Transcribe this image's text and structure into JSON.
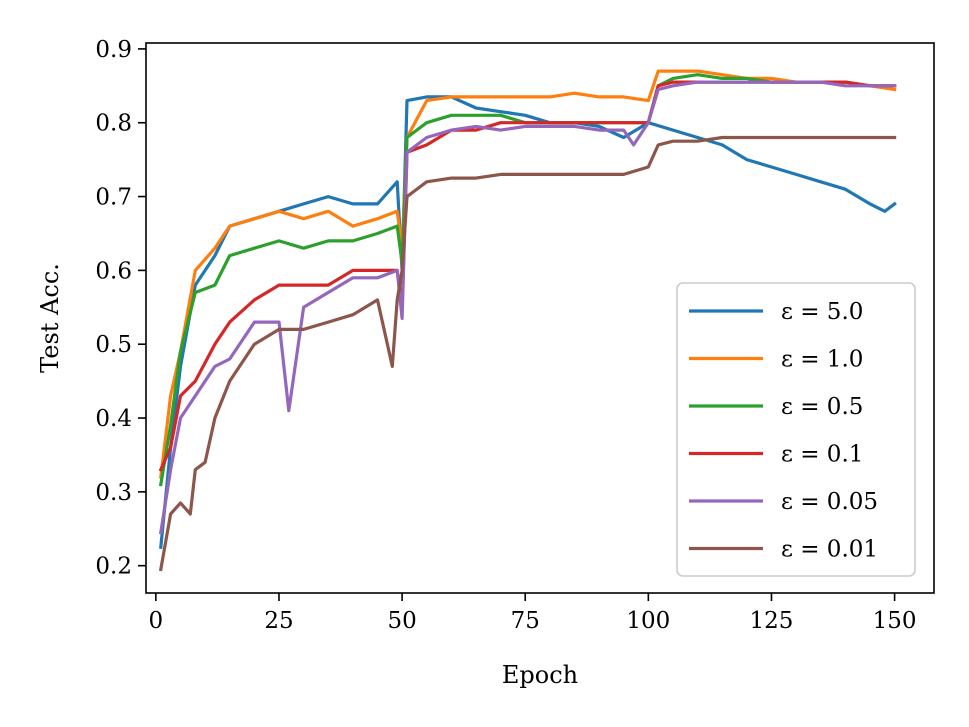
{
  "chart_data": {
    "type": "line",
    "xlabel": "Epoch",
    "ylabel": "Test Acc.",
    "xlim": [
      -2,
      158
    ],
    "ylim": [
      0.163,
      0.908
    ],
    "xticks": [
      0,
      25,
      50,
      75,
      100,
      125,
      150
    ],
    "yticks": [
      0.2,
      0.3,
      0.4,
      0.5,
      0.6,
      0.7,
      0.8,
      0.9
    ],
    "grid": false,
    "legend_position": "lower right",
    "series": [
      {
        "name": "ε = 5.0",
        "color": "#1f77b4",
        "points": [
          [
            1,
            0.225
          ],
          [
            3,
            0.36
          ],
          [
            5,
            0.47
          ],
          [
            8,
            0.58
          ],
          [
            12,
            0.62
          ],
          [
            15,
            0.66
          ],
          [
            20,
            0.67
          ],
          [
            25,
            0.68
          ],
          [
            30,
            0.69
          ],
          [
            35,
            0.7
          ],
          [
            40,
            0.69
          ],
          [
            45,
            0.69
          ],
          [
            49,
            0.72
          ],
          [
            50,
            0.6
          ],
          [
            51,
            0.83
          ],
          [
            55,
            0.835
          ],
          [
            60,
            0.835
          ],
          [
            65,
            0.82
          ],
          [
            70,
            0.815
          ],
          [
            75,
            0.81
          ],
          [
            80,
            0.8
          ],
          [
            85,
            0.8
          ],
          [
            90,
            0.795
          ],
          [
            95,
            0.78
          ],
          [
            100,
            0.8
          ],
          [
            105,
            0.79
          ],
          [
            110,
            0.78
          ],
          [
            115,
            0.77
          ],
          [
            120,
            0.75
          ],
          [
            125,
            0.74
          ],
          [
            130,
            0.73
          ],
          [
            135,
            0.72
          ],
          [
            140,
            0.71
          ],
          [
            145,
            0.69
          ],
          [
            148,
            0.68
          ],
          [
            150,
            0.69
          ]
        ]
      },
      {
        "name": "ε = 1.0",
        "color": "#ff7f0e",
        "points": [
          [
            1,
            0.32
          ],
          [
            3,
            0.43
          ],
          [
            5,
            0.49
          ],
          [
            8,
            0.6
          ],
          [
            12,
            0.63
          ],
          [
            15,
            0.66
          ],
          [
            20,
            0.67
          ],
          [
            25,
            0.68
          ],
          [
            30,
            0.67
          ],
          [
            35,
            0.68
          ],
          [
            40,
            0.66
          ],
          [
            45,
            0.67
          ],
          [
            49,
            0.68
          ],
          [
            50,
            0.63
          ],
          [
            51,
            0.78
          ],
          [
            55,
            0.83
          ],
          [
            60,
            0.835
          ],
          [
            65,
            0.835
          ],
          [
            70,
            0.835
          ],
          [
            75,
            0.835
          ],
          [
            80,
            0.835
          ],
          [
            85,
            0.84
          ],
          [
            90,
            0.835
          ],
          [
            95,
            0.835
          ],
          [
            100,
            0.83
          ],
          [
            102,
            0.87
          ],
          [
            105,
            0.87
          ],
          [
            110,
            0.87
          ],
          [
            115,
            0.865
          ],
          [
            120,
            0.86
          ],
          [
            125,
            0.86
          ],
          [
            130,
            0.855
          ],
          [
            135,
            0.855
          ],
          [
            140,
            0.855
          ],
          [
            145,
            0.85
          ],
          [
            150,
            0.845
          ]
        ]
      },
      {
        "name": "ε = 0.5",
        "color": "#2ca02c",
        "points": [
          [
            1,
            0.31
          ],
          [
            3,
            0.39
          ],
          [
            5,
            0.49
          ],
          [
            8,
            0.57
          ],
          [
            12,
            0.58
          ],
          [
            15,
            0.62
          ],
          [
            20,
            0.63
          ],
          [
            25,
            0.64
          ],
          [
            30,
            0.63
          ],
          [
            35,
            0.64
          ],
          [
            40,
            0.64
          ],
          [
            45,
            0.65
          ],
          [
            49,
            0.66
          ],
          [
            50,
            0.61
          ],
          [
            51,
            0.78
          ],
          [
            55,
            0.8
          ],
          [
            60,
            0.81
          ],
          [
            65,
            0.81
          ],
          [
            70,
            0.81
          ],
          [
            75,
            0.8
          ],
          [
            80,
            0.8
          ],
          [
            85,
            0.8
          ],
          [
            90,
            0.8
          ],
          [
            95,
            0.8
          ],
          [
            100,
            0.8
          ],
          [
            102,
            0.85
          ],
          [
            105,
            0.86
          ],
          [
            110,
            0.865
          ],
          [
            115,
            0.86
          ],
          [
            120,
            0.86
          ],
          [
            125,
            0.855
          ],
          [
            130,
            0.855
          ],
          [
            135,
            0.855
          ],
          [
            140,
            0.855
          ],
          [
            145,
            0.85
          ],
          [
            150,
            0.85
          ]
        ]
      },
      {
        "name": "ε = 0.1",
        "color": "#d62728",
        "points": [
          [
            1,
            0.33
          ],
          [
            3,
            0.36
          ],
          [
            5,
            0.43
          ],
          [
            8,
            0.45
          ],
          [
            12,
            0.5
          ],
          [
            15,
            0.53
          ],
          [
            20,
            0.56
          ],
          [
            25,
            0.58
          ],
          [
            30,
            0.58
          ],
          [
            35,
            0.58
          ],
          [
            40,
            0.6
          ],
          [
            45,
            0.6
          ],
          [
            49,
            0.6
          ],
          [
            50,
            0.55
          ],
          [
            51,
            0.76
          ],
          [
            55,
            0.77
          ],
          [
            60,
            0.79
          ],
          [
            65,
            0.79
          ],
          [
            70,
            0.8
          ],
          [
            75,
            0.8
          ],
          [
            80,
            0.8
          ],
          [
            85,
            0.8
          ],
          [
            90,
            0.8
          ],
          [
            95,
            0.8
          ],
          [
            100,
            0.8
          ],
          [
            102,
            0.85
          ],
          [
            105,
            0.855
          ],
          [
            110,
            0.855
          ],
          [
            115,
            0.855
          ],
          [
            120,
            0.855
          ],
          [
            125,
            0.855
          ],
          [
            130,
            0.855
          ],
          [
            135,
            0.855
          ],
          [
            140,
            0.855
          ],
          [
            145,
            0.85
          ],
          [
            150,
            0.85
          ]
        ]
      },
      {
        "name": "ε = 0.05",
        "color": "#9467bd",
        "points": [
          [
            1,
            0.245
          ],
          [
            3,
            0.33
          ],
          [
            5,
            0.4
          ],
          [
            8,
            0.43
          ],
          [
            12,
            0.47
          ],
          [
            15,
            0.48
          ],
          [
            20,
            0.53
          ],
          [
            25,
            0.53
          ],
          [
            27,
            0.41
          ],
          [
            30,
            0.55
          ],
          [
            35,
            0.57
          ],
          [
            40,
            0.59
          ],
          [
            45,
            0.59
          ],
          [
            49,
            0.6
          ],
          [
            50,
            0.535
          ],
          [
            51,
            0.76
          ],
          [
            55,
            0.78
          ],
          [
            60,
            0.79
          ],
          [
            65,
            0.795
          ],
          [
            70,
            0.79
          ],
          [
            75,
            0.795
          ],
          [
            80,
            0.795
          ],
          [
            85,
            0.795
          ],
          [
            90,
            0.79
          ],
          [
            95,
            0.79
          ],
          [
            97,
            0.77
          ],
          [
            100,
            0.8
          ],
          [
            102,
            0.845
          ],
          [
            105,
            0.85
          ],
          [
            110,
            0.855
          ],
          [
            115,
            0.855
          ],
          [
            120,
            0.855
          ],
          [
            125,
            0.855
          ],
          [
            130,
            0.855
          ],
          [
            135,
            0.855
          ],
          [
            140,
            0.85
          ],
          [
            145,
            0.85
          ],
          [
            150,
            0.85
          ]
        ]
      },
      {
        "name": "ε = 0.01",
        "color": "#8c564b",
        "points": [
          [
            1,
            0.195
          ],
          [
            3,
            0.27
          ],
          [
            5,
            0.285
          ],
          [
            7,
            0.27
          ],
          [
            8,
            0.33
          ],
          [
            10,
            0.34
          ],
          [
            12,
            0.4
          ],
          [
            15,
            0.45
          ],
          [
            20,
            0.5
          ],
          [
            25,
            0.52
          ],
          [
            30,
            0.52
          ],
          [
            35,
            0.53
          ],
          [
            40,
            0.54
          ],
          [
            45,
            0.56
          ],
          [
            48,
            0.47
          ],
          [
            49,
            0.56
          ],
          [
            50,
            0.6
          ],
          [
            51,
            0.7
          ],
          [
            55,
            0.72
          ],
          [
            60,
            0.725
          ],
          [
            65,
            0.725
          ],
          [
            70,
            0.73
          ],
          [
            75,
            0.73
          ],
          [
            80,
            0.73
          ],
          [
            85,
            0.73
          ],
          [
            90,
            0.73
          ],
          [
            95,
            0.73
          ],
          [
            100,
            0.74
          ],
          [
            102,
            0.77
          ],
          [
            105,
            0.775
          ],
          [
            110,
            0.775
          ],
          [
            115,
            0.78
          ],
          [
            120,
            0.78
          ],
          [
            125,
            0.78
          ],
          [
            130,
            0.78
          ],
          [
            135,
            0.78
          ],
          [
            140,
            0.78
          ],
          [
            145,
            0.78
          ],
          [
            150,
            0.78
          ]
        ]
      }
    ]
  }
}
